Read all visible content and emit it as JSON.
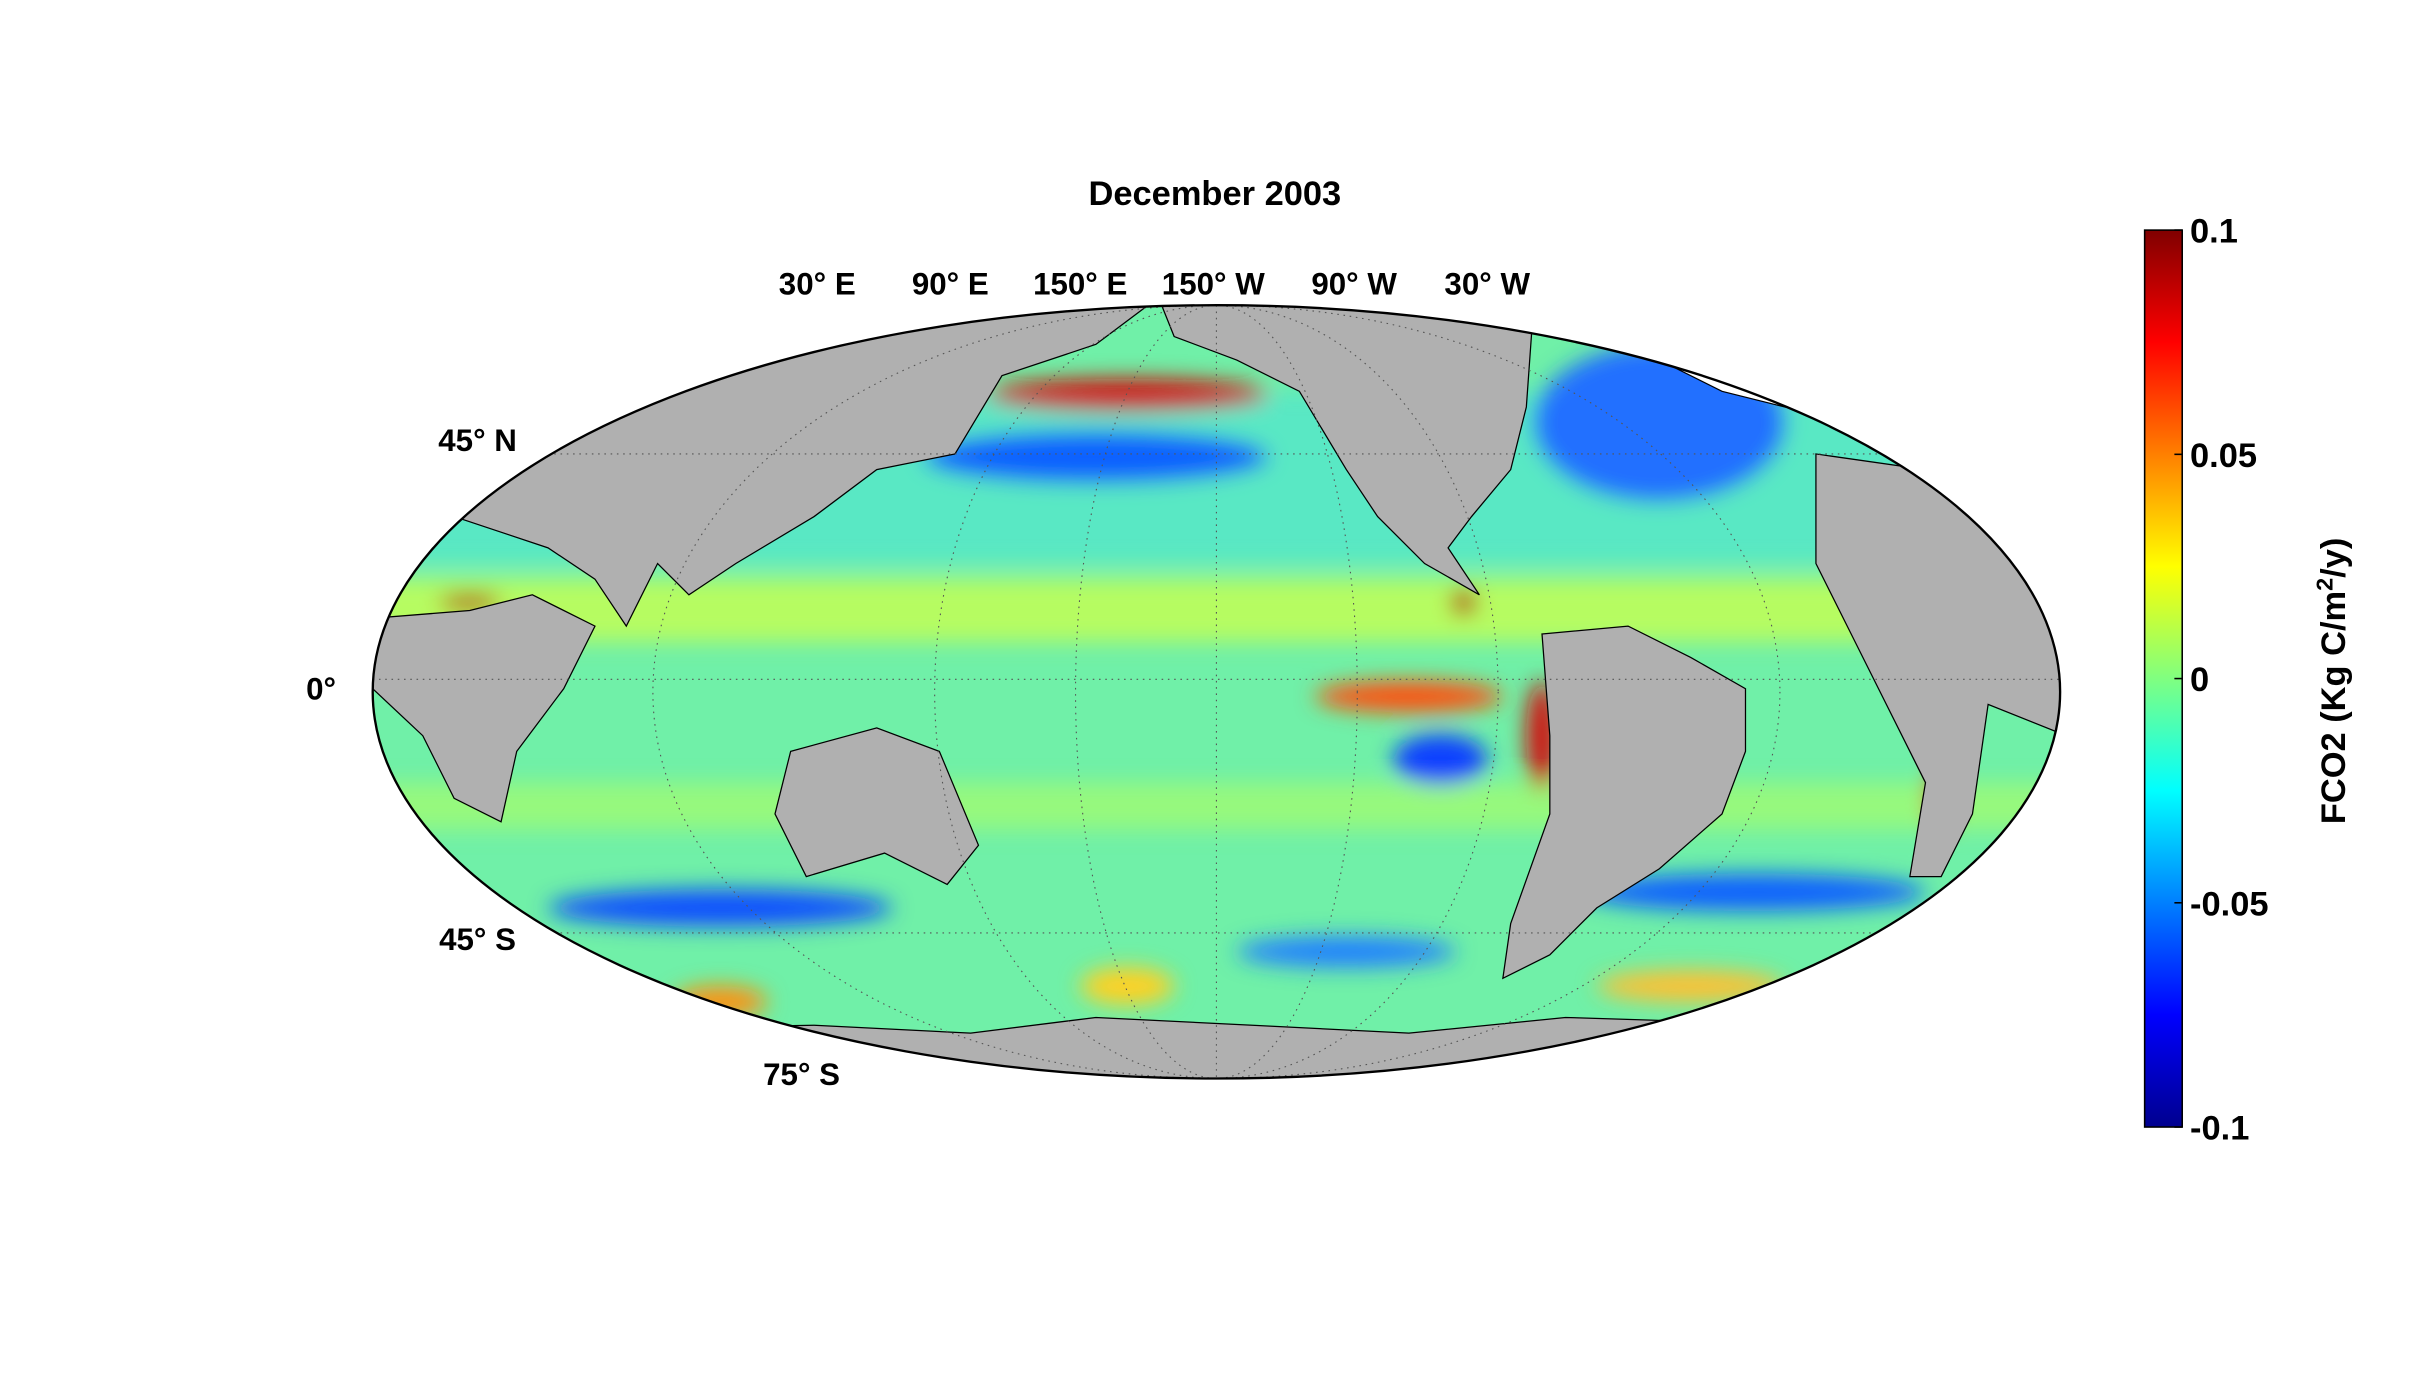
{
  "chart_data": {
    "type": "map",
    "title": "December 2003",
    "lon_labels": [
      "30° E",
      "90° E",
      "150° E",
      "150° W",
      "90° W",
      "30° W"
    ],
    "lat_labels": [
      "45° N",
      "0°",
      "45° S",
      "75° S"
    ],
    "colorbar": {
      "colormap": "jet",
      "lim": [
        -0.1,
        0.1
      ],
      "ticks": [
        0.1,
        0.05,
        0,
        -0.05,
        -0.1
      ],
      "label_parts": [
        "FCO2 (Kg C/m",
        "2",
        "/y)"
      ]
    }
  }
}
